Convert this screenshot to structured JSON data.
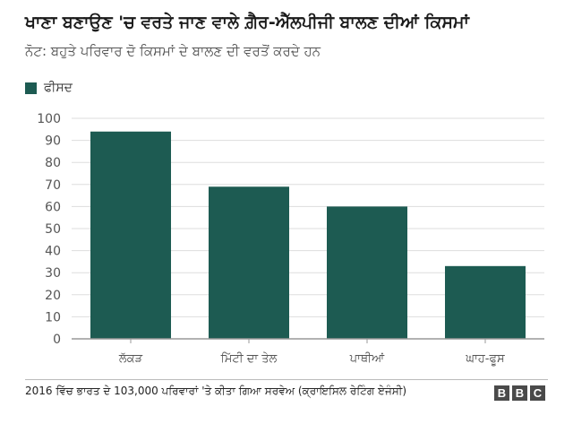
{
  "header": {
    "title": "ਖਾਣਾ ਬਣਾਉਣ 'ਚ ਵਰਤੇ ਜਾਣ ਵਾਲੇ ਗ਼ੈਰ-ਐੱਲਪੀਜੀ ਬਾਲਣ ਦੀਆਂ ਕਿਸਮਾਂ",
    "subtitle": "ਨੋਟ: ਬਹੁਤੇ ਪਰਿਵਾਰ ਦੋ ਕਿਸਮਾਂ ਦੇ ਬਾਲਣ ਦੀ ਵਰਤੋਂ ਕਰਦੇ ਹਨ"
  },
  "legend": {
    "label": "ਫੀਸਦ"
  },
  "footer": {
    "source": "2016 ਵਿੱਚ ਭਾਰਤ ਦੇ 103,000 ਪਰਿਵਾਰਾਂ 'ਤੇ ਕੀਤਾ ਗਿਆ ਸਰਵੇਅ (ਕ੍ਰਾਇਸਿਲ ਰੇਟਿੰਗ ਏਜੰਸੀ)",
    "logo_letters": [
      "B",
      "B",
      "C"
    ]
  },
  "colors": {
    "bar": "#1d5b52",
    "grid": "#dddddd",
    "axis": "#999999",
    "tick_text": "#555555",
    "logo_bg": "#4a4a4a"
  },
  "chart_data": {
    "type": "bar",
    "categories": [
      "ਲੱਕੜ",
      "ਮਿੱਟੀ ਦਾ ਤੇਲ",
      "ਪਾਥੀਆਂ",
      "ਘਾਹ-ਫੂਸ"
    ],
    "series": [
      {
        "name": "ਫੀਸਦ",
        "values": [
          94,
          69,
          60,
          33
        ]
      }
    ],
    "ylim": [
      0,
      100
    ],
    "yticks": [
      0,
      10,
      20,
      30,
      40,
      50,
      60,
      70,
      80,
      90,
      100
    ],
    "grid": true,
    "legend_position": "top-left"
  }
}
